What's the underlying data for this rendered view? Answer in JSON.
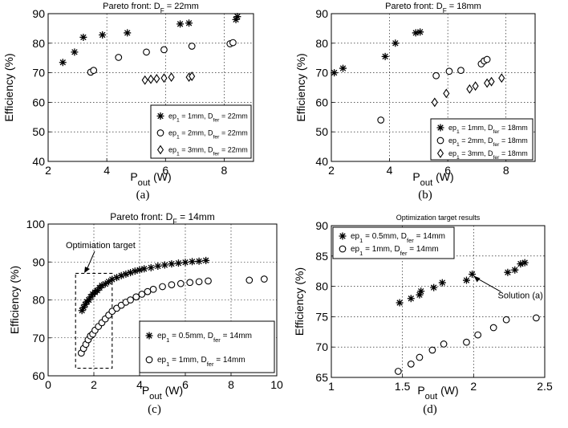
{
  "chart_data": [
    {
      "id": "a",
      "type": "scatter",
      "title_main": "Pareto front: D",
      "title_sub": "F",
      "title_tail": " = 22mm",
      "xlabel_main": "P",
      "xlabel_sub": "out",
      "xlabel_tail": " (W)",
      "ylabel": "Efficiency (%)",
      "xlim": [
        2,
        9
      ],
      "ylim": [
        40,
        90
      ],
      "xticks": [
        2,
        4,
        6,
        8
      ],
      "yticks": [
        40,
        50,
        60,
        70,
        80,
        90
      ],
      "grid": true,
      "legend": "bottom-right",
      "caption": "(a)",
      "series": [
        {
          "name_pre": "ep",
          "name_sub1": "1",
          "name_mid": " = 1mm, D",
          "name_sub2": "fer",
          "name_post": " = 22mm",
          "marker": "star",
          "x": [
            2.5,
            2.9,
            3.2,
            3.85,
            4.7,
            6.5,
            6.8,
            8.4,
            8.45
          ],
          "y": [
            73.5,
            77,
            82,
            82.8,
            83.5,
            86.5,
            86.8,
            88,
            89
          ]
        },
        {
          "name_pre": "ep",
          "name_sub1": "1",
          "name_mid": " = 2mm, D",
          "name_sub2": "fer",
          "name_post": " = 22mm",
          "marker": "circle",
          "x": [
            3.45,
            3.55,
            4.4,
            5.35,
            5.95,
            6.9,
            8.2,
            8.3
          ],
          "y": [
            70.2,
            70.8,
            75.2,
            77,
            77.8,
            79,
            79.8,
            80.2
          ]
        },
        {
          "name_pre": "ep",
          "name_sub1": "1",
          "name_mid": " = 3mm, D",
          "name_sub2": "fer",
          "name_post": " = 22mm",
          "marker": "diamond",
          "x": [
            5.3,
            5.5,
            5.7,
            5.95,
            6.2,
            6.8,
            6.9
          ],
          "y": [
            67.5,
            67.8,
            68,
            68.2,
            68.5,
            68.5,
            68.8
          ]
        }
      ]
    },
    {
      "id": "b",
      "type": "scatter",
      "title_main": "Pareto front: D",
      "title_sub": "F",
      "title_tail": " = 18mm",
      "xlabel_main": "P",
      "xlabel_sub": "out",
      "xlabel_tail": " (W)",
      "ylabel": "Efficiency (%)",
      "xlim": [
        2,
        9
      ],
      "ylim": [
        40,
        90
      ],
      "xticks": [
        2,
        4,
        6,
        8
      ],
      "yticks": [
        40,
        50,
        60,
        70,
        80,
        90
      ],
      "grid": true,
      "legend": "bottom-right",
      "caption": "(b)",
      "series": [
        {
          "name_pre": "ep",
          "name_sub1": "1",
          "name_mid": " = 1mm, D",
          "name_sub2": "fer",
          "name_post": " = 18mm",
          "marker": "star",
          "x": [
            2.1,
            2.4,
            3.85,
            4.2,
            4.9,
            5.05
          ],
          "y": [
            70,
            71.5,
            75.5,
            80,
            83.5,
            83.8
          ]
        },
        {
          "name_pre": "ep",
          "name_sub1": "1",
          "name_mid": " = 2mm, D",
          "name_sub2": "fer",
          "name_post": " = 18mm",
          "marker": "circle",
          "x": [
            3.7,
            5.6,
            6.05,
            6.45,
            7.15,
            7.25,
            7.35
          ],
          "y": [
            54,
            69,
            70.5,
            70.8,
            73,
            74,
            74.5
          ]
        },
        {
          "name_pre": "ep",
          "name_sub1": "1",
          "name_mid": " = 3mm, D",
          "name_sub2": "fer",
          "name_post": " = 18mm",
          "marker": "diamond",
          "x": [
            5.55,
            5.95,
            6.75,
            6.95,
            7.35,
            7.5,
            7.85
          ],
          "y": [
            60,
            63,
            64.5,
            65.5,
            66.5,
            67,
            68.2
          ]
        }
      ]
    },
    {
      "id": "c",
      "type": "scatter",
      "title_main": "Pareto front: D",
      "title_sub": "F",
      "title_tail": " = 14mm",
      "xlabel_main": "P",
      "xlabel_sub": "out",
      "xlabel_tail": " (W)",
      "ylabel": "Efficiency (%)",
      "xlim": [
        0,
        10
      ],
      "ylim": [
        60,
        100
      ],
      "xticks": [
        0,
        2,
        4,
        6,
        8,
        10
      ],
      "yticks": [
        60,
        70,
        80,
        90,
        100
      ],
      "grid": true,
      "legend": "bottom-right",
      "caption": "(c)",
      "annotation": "Optimiation target",
      "target_box": {
        "x": [
          1.2,
          2.8
        ],
        "y": [
          62,
          87
        ]
      },
      "series": [
        {
          "name_pre": "ep",
          "name_sub1": "1",
          "name_mid": " = 0.5mm, D",
          "name_sub2": "fer",
          "name_post": " = 14mm",
          "marker": "star",
          "x": [
            1.48,
            1.55,
            1.62,
            1.7,
            1.78,
            1.86,
            1.95,
            2.05,
            2.15,
            2.25,
            2.35,
            2.5,
            2.65,
            2.8,
            3.0,
            3.2,
            3.4,
            3.6,
            3.8,
            4.0,
            4.2,
            4.5,
            4.8,
            5.1,
            5.4,
            5.7,
            6.0,
            6.3,
            6.6,
            6.9
          ],
          "y": [
            77.2,
            78,
            78.8,
            79.5,
            80,
            80.8,
            81.5,
            82,
            82.5,
            83.2,
            83.8,
            84.2,
            84.8,
            85.4,
            85.9,
            86.4,
            86.8,
            87.2,
            87.6,
            87.9,
            88.2,
            88.5,
            88.9,
            89.2,
            89.5,
            89.7,
            89.9,
            90.1,
            90.2,
            90.4
          ]
        },
        {
          "name_pre": "ep",
          "name_sub1": "1",
          "name_mid": " = 1mm, D",
          "name_sub2": "fer",
          "name_post": " = 14mm",
          "marker": "circle",
          "x": [
            1.45,
            1.55,
            1.65,
            1.75,
            1.85,
            1.95,
            2.05,
            2.2,
            2.35,
            2.5,
            2.65,
            2.8,
            3.0,
            3.2,
            3.4,
            3.6,
            3.85,
            4.1,
            4.35,
            4.6,
            5.0,
            5.4,
            5.8,
            6.2,
            6.6,
            7.0,
            8.8,
            9.45
          ],
          "y": [
            66,
            67.2,
            68.3,
            69.5,
            70.5,
            71,
            72,
            73,
            74,
            75,
            76,
            77,
            77.8,
            78.6,
            79.4,
            80,
            80.8,
            81.5,
            82.2,
            82.8,
            83.5,
            84,
            84.3,
            84.6,
            84.8,
            85,
            85.2,
            85.5
          ]
        }
      ]
    },
    {
      "id": "d",
      "type": "scatter",
      "title_main": "Optimization target results",
      "xlabel_main": "P",
      "xlabel_sub": "out",
      "xlabel_tail": " (W)",
      "ylabel": "Efficiency (%)",
      "xlim": [
        1,
        2.5
      ],
      "ylim": [
        65,
        90
      ],
      "xticks": [
        1,
        1.5,
        2,
        2.5
      ],
      "yticks": [
        65,
        70,
        75,
        80,
        85,
        90
      ],
      "grid": true,
      "legend": "top-left",
      "caption": "(d)",
      "annotation": "Solution (a)",
      "annotation_point": {
        "x": 1.99,
        "y": 82
      },
      "series": [
        {
          "name_pre": "ep",
          "name_sub1": "1",
          "name_mid": " = 0.5mm, D",
          "name_sub2": "fer",
          "name_post": " = 14mm",
          "marker": "star",
          "x": [
            1.48,
            1.56,
            1.62,
            1.63,
            1.72,
            1.78,
            1.95,
            1.99,
            2.24,
            2.29,
            2.33,
            2.36
          ],
          "y": [
            77.3,
            78,
            78.6,
            79.2,
            79.8,
            80.6,
            81,
            82,
            82.3,
            82.7,
            83.7,
            83.9
          ]
        },
        {
          "name_pre": "ep",
          "name_sub1": "1",
          "name_mid": " = 1mm, D",
          "name_sub2": "fer",
          "name_post": " = 14mm",
          "marker": "circle",
          "x": [
            1.47,
            1.56,
            1.62,
            1.71,
            1.79,
            1.95,
            2.03,
            2.14,
            2.23,
            2.44
          ],
          "y": [
            66,
            67.2,
            68.3,
            69.5,
            70.5,
            70.8,
            72,
            73.2,
            74.5,
            74.8
          ]
        }
      ]
    }
  ]
}
